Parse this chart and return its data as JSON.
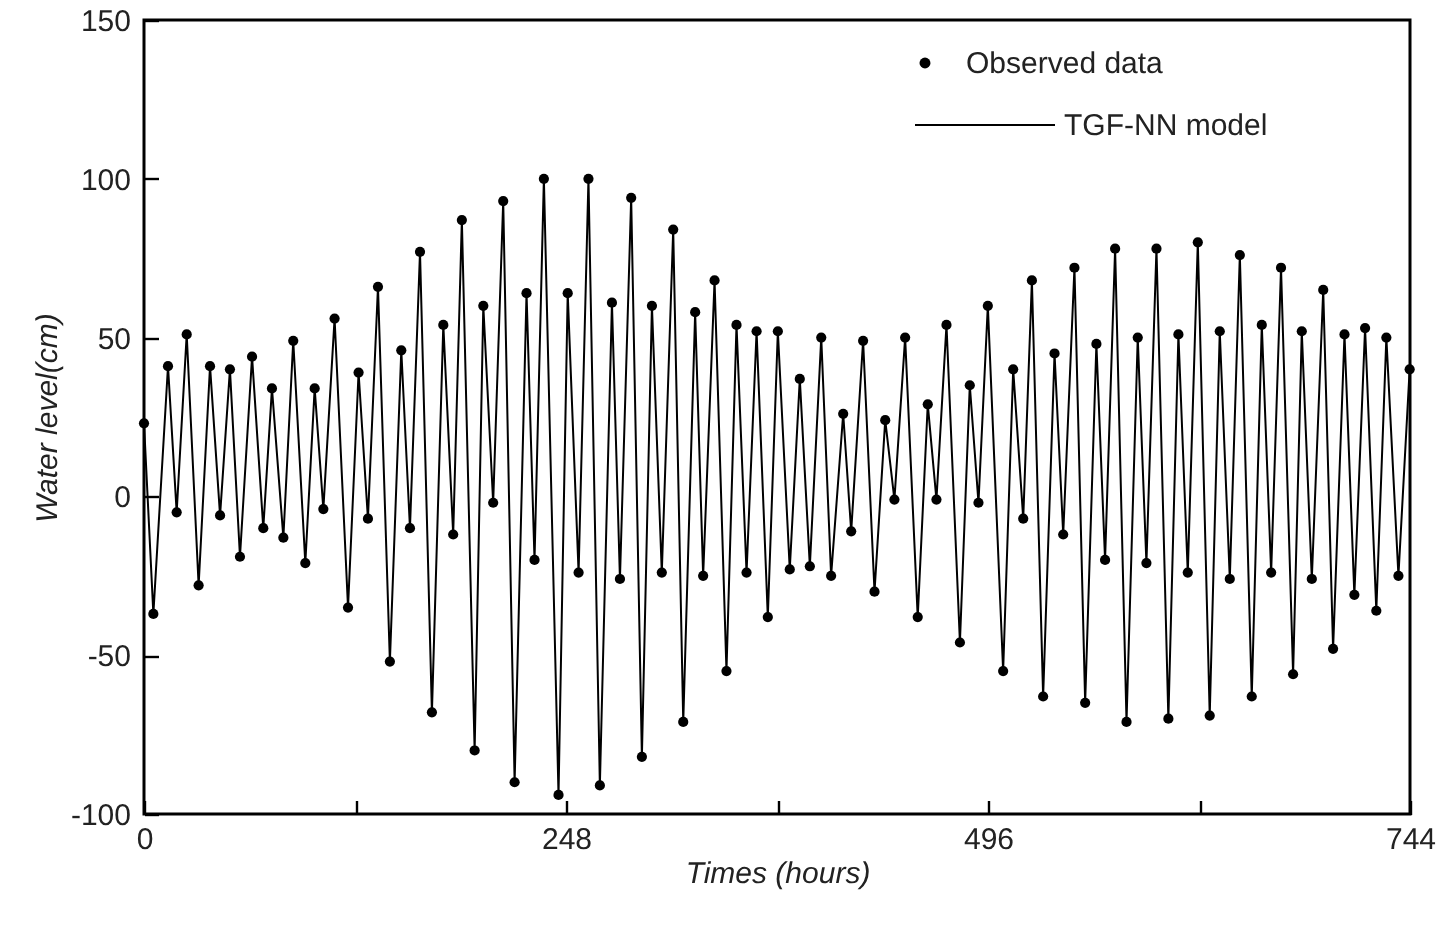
{
  "chart_data": {
    "type": "line",
    "xlabel": "Times (hours)",
    "ylabel": "Water level(cm)",
    "x": [
      0,
      5.5,
      14.1,
      19.2,
      25.1,
      32.1,
      38.8,
      44.7,
      50.5,
      56.4,
      63.5,
      70.1,
      75.2,
      81.9,
      87.7,
      94.8,
      100.3,
      105.4,
      112,
      119.9,
      126.1,
      131.6,
      137.5,
      144.5,
      151.2,
      156.3,
      162.2,
      169.2,
      175.9,
      181.7,
      186.8,
      194.3,
      199.4,
      205.2,
      211.1,
      217.8,
      224.8,
      229.5,
      235,
      243.6,
      249,
      255.4,
      261.2,
      267.9,
      275,
      279.7,
      286.3,
      292.6,
      298.5,
      304.3,
      311,
      316.9,
      323.9,
      328.6,
      335.3,
      342.3,
      348.2,
      354.1,
      360,
      366.6,
      372.5,
      379.5,
      385.4,
      391.3,
      398,
      403.8,
      410.9,
      415.6,
      422.6,
      429.3,
      435.6,
      441,
      447.3,
      454.7,
      460.6,
      465.7,
      471.6,
      479.5,
      485.3,
      490.4,
      495.9,
      504.9,
      510.8,
      516.7,
      521.8,
      528.4,
      535.1,
      540.2,
      546.8,
      553.1,
      559.7,
      564.8,
      570.7,
      577.4,
      584,
      589.1,
      595,
      602,
      607.9,
      613.4,
      619.3,
      626.3,
      632.2,
      638.1,
      644,
      651,
      656.9,
      662.4,
      668.2,
      675.3,
      680.4,
      686.3,
      693,
      698.8,
      705.5,
      711.3,
      717.6,
      724.2,
      730.1,
      737.2,
      743.8
    ],
    "series": [
      {
        "name": "Observed data",
        "type": "scatter",
        "marker": "circle",
        "color": "#000000",
        "values": [
          23,
          -37,
          41,
          -5,
          51,
          -28,
          41,
          -6,
          40,
          -19,
          44,
          -10,
          34,
          -13,
          49,
          -21,
          34,
          -4,
          56,
          -35,
          39,
          -7,
          66,
          -52,
          46,
          -10,
          77,
          -68,
          54,
          -12,
          87,
          -80,
          60,
          -2,
          93,
          -90,
          64,
          -20,
          100,
          -94,
          64,
          -24,
          100,
          -91,
          61,
          -26,
          94,
          -82,
          60,
          -24,
          84,
          -71,
          58,
          -25,
          68,
          -55,
          54,
          -24,
          52,
          -38,
          52,
          -23,
          37,
          -22,
          50,
          -25,
          26,
          -11,
          49,
          -30,
          24,
          -1,
          50,
          -38,
          29,
          -1,
          54,
          -46,
          35,
          -2,
          60,
          -55,
          40,
          -7,
          68,
          -63,
          45,
          -12,
          72,
          -65,
          48,
          -20,
          78,
          -71,
          50,
          -21,
          78,
          -70,
          51,
          -24,
          80,
          -69,
          52,
          -26,
          76,
          -63,
          54,
          -24,
          72,
          -56,
          52,
          -26,
          65,
          -48,
          51,
          -31,
          53,
          -36,
          50,
          -25,
          40
        ]
      },
      {
        "name": "TGF-NN model",
        "line_style": "solid",
        "color": "#000000",
        "values": [
          23,
          -37,
          41,
          -5,
          51,
          -28,
          41,
          -6,
          40,
          -19,
          44,
          -10,
          34,
          -13,
          49,
          -21,
          34,
          -4,
          56,
          -35,
          39,
          -7,
          66,
          -52,
          46,
          -10,
          77,
          -68,
          54,
          -12,
          87,
          -80,
          60,
          -2,
          93,
          -90,
          64,
          -20,
          100,
          -94,
          64,
          -24,
          100,
          -91,
          61,
          -26,
          94,
          -82,
          60,
          -24,
          84,
          -71,
          58,
          -25,
          68,
          -55,
          54,
          -24,
          52,
          -38,
          52,
          -23,
          37,
          -22,
          50,
          -25,
          26,
          -11,
          49,
          -30,
          24,
          -1,
          50,
          -38,
          29,
          -1,
          54,
          -46,
          35,
          -2,
          60,
          -55,
          40,
          -7,
          68,
          -63,
          45,
          -12,
          72,
          -65,
          48,
          -20,
          78,
          -71,
          50,
          -21,
          78,
          -70,
          51,
          -24,
          80,
          -69,
          52,
          -26,
          76,
          -63,
          54,
          -24,
          72,
          -56,
          52,
          -26,
          65,
          -48,
          51,
          -31,
          53,
          -36,
          50,
          -25,
          40
        ]
      }
    ],
    "xlim": [
      0,
      744
    ],
    "xticks": [
      0,
      {
        "value": 124,
        "label": null
      },
      248,
      {
        "value": 372,
        "label": null
      },
      496,
      {
        "value": 620,
        "label": null
      },
      744
    ],
    "ylim": [
      -100,
      150
    ],
    "yticks": [
      -100,
      -50,
      0,
      50,
      100,
      150
    ],
    "grid": false,
    "legend": "top right"
  }
}
